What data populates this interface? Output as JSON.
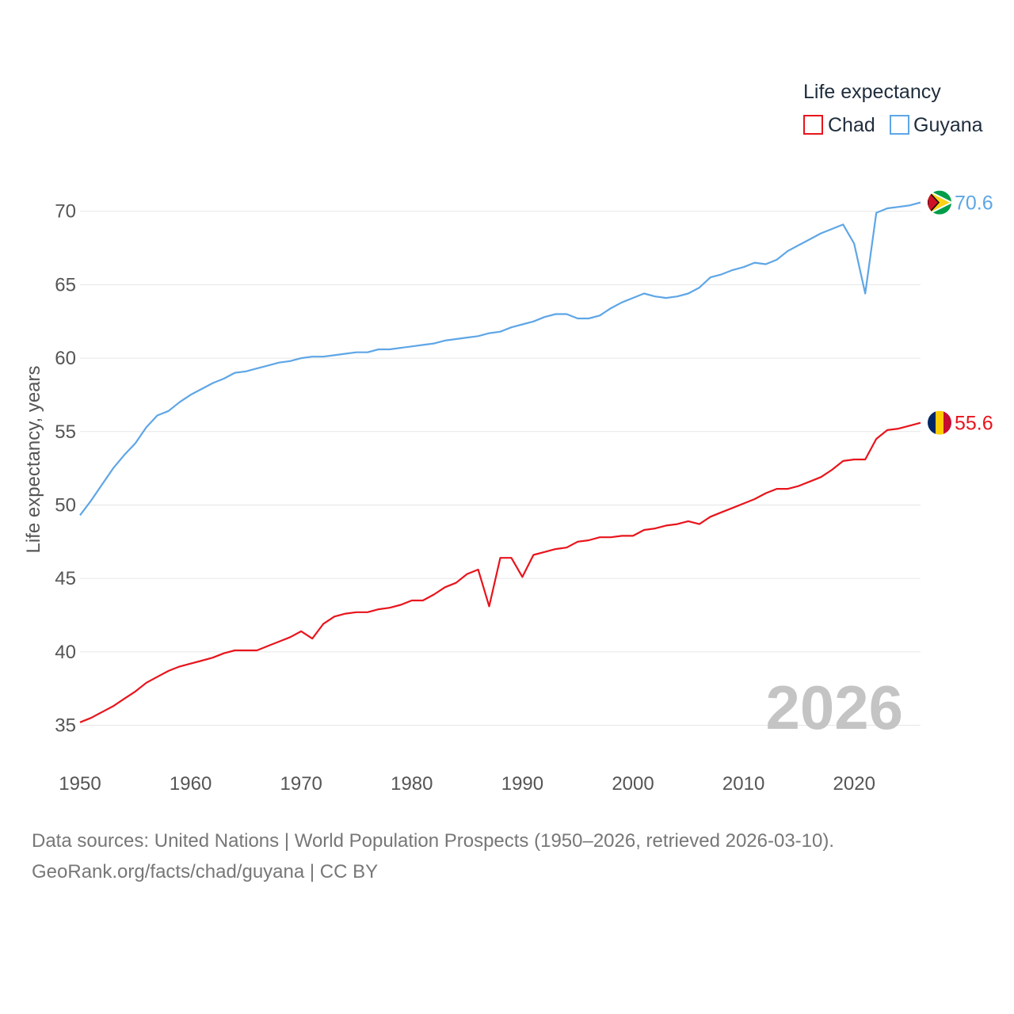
{
  "chart_data": {
    "type": "line",
    "legend_title": "Life expectancy",
    "ylabel": "Life expectancy, years",
    "xlabel": "",
    "xlim": [
      1950,
      2026
    ],
    "ylim": [
      32.6,
      73.6
    ],
    "x_ticks": [
      1950,
      1960,
      1970,
      1980,
      1990,
      2000,
      2010,
      2020
    ],
    "y_ticks": [
      35,
      40,
      45,
      50,
      55,
      60,
      65,
      70
    ],
    "current_year": "2026",
    "legend_position": "top-right",
    "x": [
      1950,
      1951,
      1952,
      1953,
      1954,
      1955,
      1956,
      1957,
      1958,
      1959,
      1960,
      1961,
      1962,
      1963,
      1964,
      1965,
      1966,
      1967,
      1968,
      1969,
      1970,
      1971,
      1972,
      1973,
      1974,
      1975,
      1976,
      1977,
      1978,
      1979,
      1980,
      1981,
      1982,
      1983,
      1984,
      1985,
      1986,
      1987,
      1988,
      1989,
      1990,
      1991,
      1992,
      1993,
      1994,
      1995,
      1996,
      1997,
      1998,
      1999,
      2000,
      2001,
      2002,
      2003,
      2004,
      2005,
      2006,
      2007,
      2008,
      2009,
      2010,
      2011,
      2012,
      2013,
      2014,
      2015,
      2016,
      2017,
      2018,
      2019,
      2020,
      2021,
      2022,
      2023,
      2024,
      2025,
      2026
    ],
    "series": [
      {
        "name": "Chad",
        "color": "#e8141c",
        "end_label": "55.6",
        "flag": "chad-flag-icon",
        "values": [
          35.2,
          35.5,
          35.9,
          36.3,
          36.8,
          37.3,
          37.9,
          38.3,
          38.7,
          39.0,
          39.2,
          39.4,
          39.6,
          39.9,
          40.1,
          40.1,
          40.1,
          40.4,
          40.7,
          41.0,
          41.4,
          40.9,
          41.9,
          42.4,
          42.6,
          42.7,
          42.7,
          42.9,
          43.0,
          43.2,
          43.5,
          43.5,
          43.9,
          44.4,
          44.7,
          45.3,
          45.6,
          43.1,
          46.4,
          46.4,
          45.1,
          46.6,
          46.8,
          47.0,
          47.1,
          47.5,
          47.6,
          47.8,
          47.8,
          47.9,
          47.9,
          48.3,
          48.4,
          48.6,
          48.7,
          48.9,
          48.7,
          49.2,
          49.5,
          49.8,
          50.1,
          50.4,
          50.8,
          51.1,
          51.1,
          51.3,
          51.6,
          51.9,
          52.4,
          53.0,
          53.1,
          53.1,
          54.5,
          55.1,
          55.2,
          55.4,
          55.6
        ]
      },
      {
        "name": "Guyana",
        "color": "#5ea6e6",
        "end_label": "70.6",
        "flag": "guyana-flag-icon",
        "values": [
          49.3,
          50.3,
          51.4,
          52.5,
          53.4,
          54.2,
          55.3,
          56.1,
          56.4,
          57.0,
          57.5,
          57.9,
          58.3,
          58.6,
          59.0,
          59.1,
          59.3,
          59.5,
          59.7,
          59.8,
          60.0,
          60.1,
          60.1,
          60.2,
          60.3,
          60.4,
          60.4,
          60.6,
          60.6,
          60.7,
          60.8,
          60.9,
          61.0,
          61.2,
          61.3,
          61.4,
          61.5,
          61.7,
          61.8,
          62.1,
          62.3,
          62.5,
          62.8,
          63.0,
          63.0,
          62.7,
          62.7,
          62.9,
          63.4,
          63.8,
          64.1,
          64.4,
          64.2,
          64.1,
          64.2,
          64.4,
          64.8,
          65.5,
          65.7,
          66.0,
          66.2,
          66.5,
          66.4,
          66.7,
          67.3,
          67.7,
          68.1,
          68.5,
          68.8,
          69.1,
          67.8,
          64.4,
          69.9,
          70.2,
          70.3,
          70.4,
          70.6
        ]
      }
    ]
  },
  "source": {
    "line1": "Data sources: United Nations | World Population Prospects (1950–2026, retrieved 2026-03-10).",
    "line2": "GeoRank.org/facts/chad/guyana | CC BY"
  }
}
